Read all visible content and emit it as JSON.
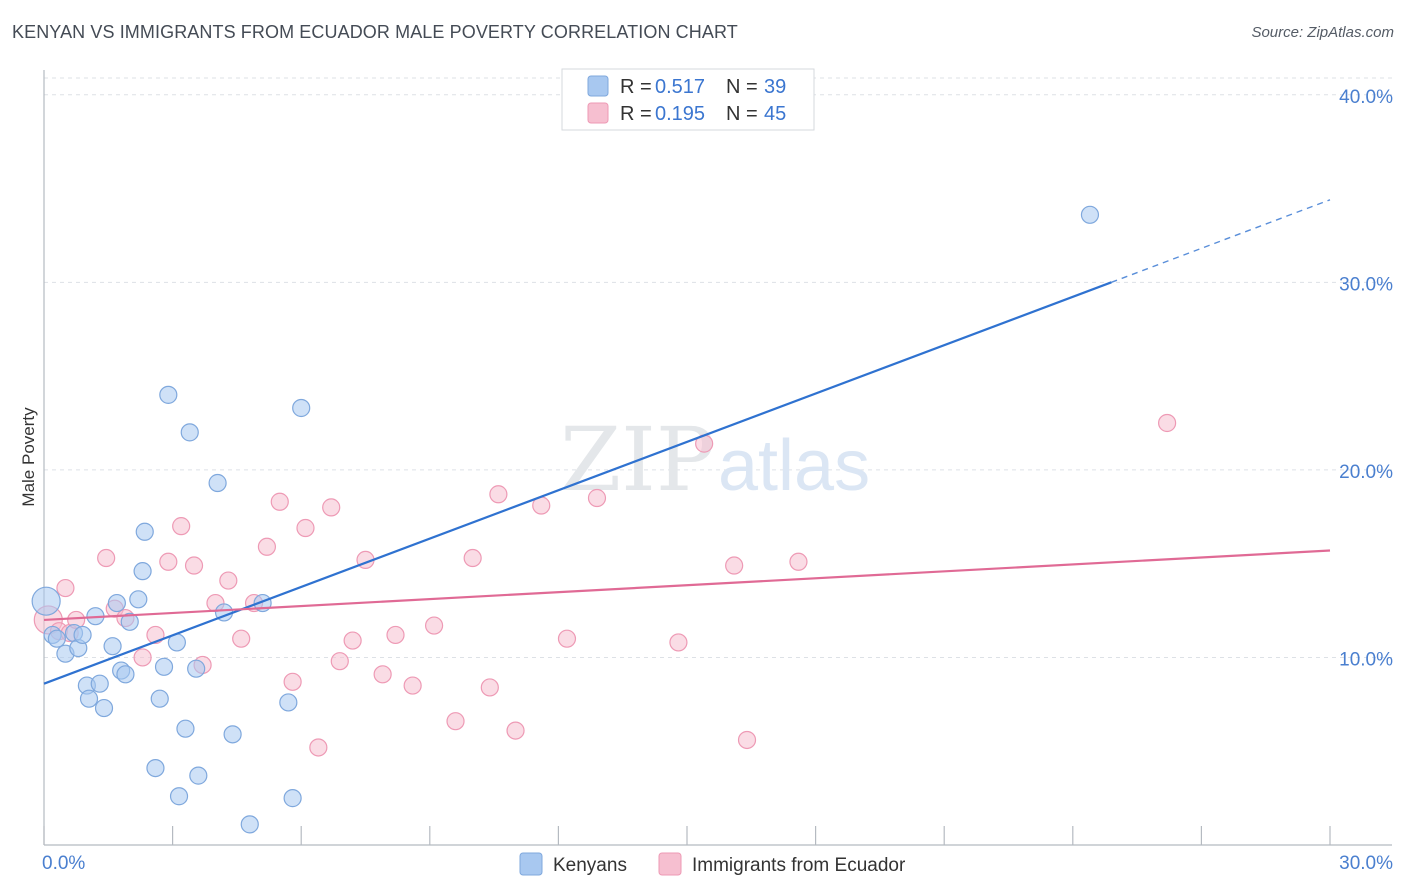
{
  "title": "KENYAN VS IMMIGRANTS FROM ECUADOR MALE POVERTY CORRELATION CHART",
  "source": "Source: ZipAtlas.com",
  "watermark": {
    "zip": "ZIP",
    "atlas": "atlas"
  },
  "colors": {
    "kenyan_fill": "#a8c8f0",
    "kenyan_stroke": "#7fa8dd",
    "kenyan_line": "#2f72d0",
    "ecuador_fill": "#f6bfd0",
    "ecuador_stroke": "#ee9ab5",
    "ecuador_line": "#e06a95",
    "grid": "#dde1e6",
    "tick_label": "#4a7fcf"
  },
  "legend": {
    "r_label": "R = ",
    "n_label": "N = ",
    "kenyan_r": "0.517",
    "kenyan_n": "39",
    "ecuador_r": "0.195",
    "ecuador_n": "45"
  },
  "chart_data": {
    "type": "scatter",
    "title": "KENYAN VS IMMIGRANTS FROM ECUADOR MALE POVERTY CORRELATION CHART",
    "xlabel": "",
    "ylabel": "Male Poverty",
    "xlim": [
      0,
      30
    ],
    "ylim": [
      0,
      41
    ],
    "x_tick_labels": [
      "0.0%",
      "30.0%"
    ],
    "y_ticks": [
      10,
      20,
      30,
      40
    ],
    "y_tick_labels": [
      "10.0%",
      "20.0%",
      "30.0%",
      "40.0%"
    ],
    "grid": true,
    "legend_position": "top-center",
    "series": [
      {
        "name": "Kenyans",
        "r": 0.517,
        "n": 39,
        "trend": {
          "x0": 0,
          "y0": 8.6,
          "x1": 24.9,
          "y1": 30.0,
          "dashed_to_x": 30,
          "dashed_to_y": 34.4
        },
        "points": [
          [
            0.05,
            13.0
          ],
          [
            0.2,
            11.2
          ],
          [
            0.5,
            10.2
          ],
          [
            0.7,
            11.3
          ],
          [
            0.8,
            10.5
          ],
          [
            1.0,
            8.5
          ],
          [
            1.05,
            7.8
          ],
          [
            1.2,
            12.2
          ],
          [
            1.3,
            8.6
          ],
          [
            1.4,
            7.3
          ],
          [
            1.6,
            10.6
          ],
          [
            1.7,
            12.9
          ],
          [
            1.8,
            9.3
          ],
          [
            1.9,
            9.1
          ],
          [
            2.0,
            11.9
          ],
          [
            2.2,
            13.1
          ],
          [
            2.3,
            14.6
          ],
          [
            2.35,
            16.7
          ],
          [
            2.6,
            4.1
          ],
          [
            2.7,
            7.8
          ],
          [
            2.8,
            9.5
          ],
          [
            2.9,
            24.0
          ],
          [
            3.1,
            10.8
          ],
          [
            3.15,
            2.6
          ],
          [
            3.3,
            6.2
          ],
          [
            3.4,
            22.0
          ],
          [
            3.6,
            3.7
          ],
          [
            3.55,
            9.4
          ],
          [
            4.05,
            19.3
          ],
          [
            4.2,
            12.4
          ],
          [
            4.4,
            5.9
          ],
          [
            4.8,
            1.1
          ],
          [
            5.1,
            12.9
          ],
          [
            5.7,
            7.6
          ],
          [
            5.8,
            2.5
          ],
          [
            6.0,
            23.3
          ],
          [
            24.4,
            33.6
          ],
          [
            0.3,
            11.0
          ],
          [
            0.9,
            11.2
          ]
        ]
      },
      {
        "name": "Immigrants from Ecuador",
        "r": 0.195,
        "n": 45,
        "trend": {
          "x0": 0,
          "y0": 12.0,
          "x1": 30,
          "y1": 15.7
        },
        "points": [
          [
            0.1,
            12.0
          ],
          [
            0.35,
            11.4
          ],
          [
            0.5,
            13.7
          ],
          [
            0.6,
            11.3
          ],
          [
            0.75,
            12.0
          ],
          [
            1.45,
            15.3
          ],
          [
            1.65,
            12.6
          ],
          [
            1.9,
            12.1
          ],
          [
            2.3,
            10.0
          ],
          [
            2.6,
            11.2
          ],
          [
            2.9,
            15.1
          ],
          [
            3.2,
            17.0
          ],
          [
            3.5,
            14.9
          ],
          [
            3.7,
            9.6
          ],
          [
            4.0,
            12.9
          ],
          [
            4.3,
            14.1
          ],
          [
            4.6,
            11.0
          ],
          [
            4.9,
            12.9
          ],
          [
            5.2,
            15.9
          ],
          [
            5.5,
            18.3
          ],
          [
            5.8,
            8.7
          ],
          [
            6.1,
            16.9
          ],
          [
            6.4,
            5.2
          ],
          [
            6.7,
            18.0
          ],
          [
            6.9,
            9.8
          ],
          [
            7.2,
            10.9
          ],
          [
            7.5,
            15.2
          ],
          [
            7.9,
            9.1
          ],
          [
            8.2,
            11.2
          ],
          [
            8.6,
            8.5
          ],
          [
            9.1,
            11.7
          ],
          [
            9.6,
            6.6
          ],
          [
            10.0,
            15.3
          ],
          [
            10.4,
            8.4
          ],
          [
            10.6,
            18.7
          ],
          [
            11.0,
            6.1
          ],
          [
            11.6,
            18.1
          ],
          [
            12.2,
            11.0
          ],
          [
            12.9,
            18.5
          ],
          [
            14.8,
            10.8
          ],
          [
            15.4,
            21.4
          ],
          [
            16.1,
            14.9
          ],
          [
            16.4,
            5.6
          ],
          [
            17.6,
            15.1
          ],
          [
            26.2,
            22.5
          ]
        ]
      }
    ]
  },
  "bottom_legend": {
    "kenyans": "Kenyans",
    "ecuador": "Immigrants from Ecuador"
  }
}
